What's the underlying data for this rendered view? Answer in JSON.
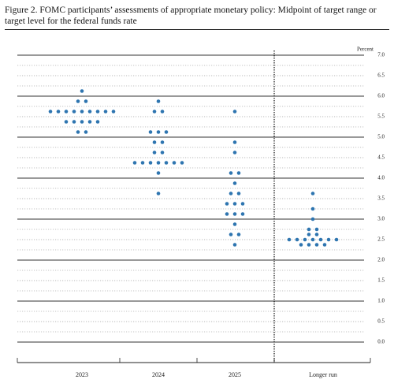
{
  "chart_data": {
    "type": "dot",
    "title": "Figure 2.  FOMC participants’ assessments of appropriate monetary policy: Midpoint of target range or target level for the federal funds rate",
    "y_label": "Percent",
    "categories": [
      "2023",
      "2024",
      "2025",
      "Longer run"
    ],
    "color": "#2e75b0",
    "dots": [
      [
        {
          "value": 6.125,
          "count": 1
        },
        {
          "value": 5.875,
          "count": 2
        },
        {
          "value": 5.625,
          "count": 9
        },
        {
          "value": 5.375,
          "count": 5
        },
        {
          "value": 5.125,
          "count": 2
        }
      ],
      [
        {
          "value": 5.875,
          "count": 1
        },
        {
          "value": 5.625,
          "count": 2
        },
        {
          "value": 5.125,
          "count": 3
        },
        {
          "value": 4.875,
          "count": 2
        },
        {
          "value": 4.625,
          "count": 2
        },
        {
          "value": 4.375,
          "count": 7
        },
        {
          "value": 4.125,
          "count": 1
        },
        {
          "value": 3.625,
          "count": 1
        }
      ],
      [
        {
          "value": 5.625,
          "count": 1
        },
        {
          "value": 4.875,
          "count": 1
        },
        {
          "value": 4.625,
          "count": 1
        },
        {
          "value": 4.125,
          "count": 2
        },
        {
          "value": 3.875,
          "count": 1
        },
        {
          "value": 3.625,
          "count": 2
        },
        {
          "value": 3.375,
          "count": 3
        },
        {
          "value": 3.125,
          "count": 3
        },
        {
          "value": 2.875,
          "count": 1
        },
        {
          "value": 2.625,
          "count": 2
        },
        {
          "value": 2.375,
          "count": 1
        }
      ],
      [
        {
          "value": 3.625,
          "count": 1
        },
        {
          "value": 3.25,
          "count": 1
        },
        {
          "value": 3,
          "count": 1
        },
        {
          "value": 2.75,
          "count": 2
        },
        {
          "value": 2.625,
          "count": 2
        },
        {
          "value": 2.5,
          "count": 7
        },
        {
          "value": 2.375,
          "count": 4
        }
      ]
    ],
    "ylim": [
      0,
      7
    ],
    "yticks": [
      {
        "value": 0,
        "label": "0.0"
      },
      0.5,
      {
        "value": 1,
        "label": "1.0"
      },
      1.5,
      {
        "value": 2,
        "label": "2.0"
      },
      2.5,
      {
        "value": 3,
        "label": "3.0"
      },
      3.5,
      {
        "value": 4,
        "label": "4.0"
      },
      4.5,
      {
        "value": 5,
        "label": "5.0"
      },
      5.5,
      {
        "value": 6,
        "label": "6.0"
      },
      6.5,
      {
        "value": 7,
        "label": "7.0"
      }
    ],
    "grid": true
  }
}
